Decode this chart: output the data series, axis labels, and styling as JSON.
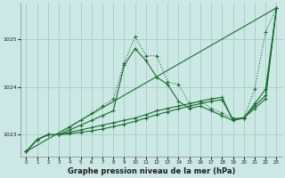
{
  "title": "Graphe pression niveau de la mer (hPa)",
  "bg_color": "#cce8e5",
  "grid_color": "#aacfcc",
  "line_color": "#1a6e2e",
  "xlim": [
    -0.5,
    23.5
  ],
  "ylim": [
    1022.55,
    1025.75
  ],
  "yticks": [
    1023,
    1024,
    1025
  ],
  "figsize": [
    3.2,
    2.0
  ],
  "series": [
    {
      "x": [
        0,
        1,
        2,
        3,
        4,
        5,
        6,
        7,
        8,
        9,
        10,
        11,
        12,
        13,
        14,
        15,
        16,
        17,
        18,
        19,
        20,
        21,
        22,
        23
      ],
      "y": [
        1022.65,
        1022.9,
        1023.0,
        1023.0,
        1023.15,
        1023.3,
        1023.45,
        1023.6,
        1023.75,
        1024.5,
        1025.05,
        1024.65,
        1024.65,
        1024.1,
        1024.05,
        1023.65,
        1023.7,
        1023.55,
        1023.45,
        1023.35,
        1023.35,
        1023.95,
        1025.15,
        1025.65
      ],
      "linestyle": "dotted"
    },
    {
      "x": [
        0,
        1,
        2,
        3,
        4,
        5,
        6,
        7,
        8,
        9,
        10,
        11,
        12,
        13,
        14,
        15,
        16,
        17,
        18,
        19,
        20,
        21,
        22,
        23
      ],
      "y": [
        1022.65,
        1022.9,
        1023.0,
        1023.0,
        1023.1,
        1023.2,
        1023.3,
        1023.4,
        1023.5,
        1024.45,
        1024.8,
        1024.55,
        1024.2,
        1024.05,
        1023.7,
        1023.55,
        1023.6,
        1023.5,
        1023.4,
        1023.3,
        1023.35,
        1023.65,
        1023.95,
        1025.65
      ],
      "linestyle": "solid"
    },
    {
      "x": [
        0,
        23
      ],
      "y": [
        1022.65,
        1025.65
      ],
      "linestyle": "solid"
    },
    {
      "x": [
        0,
        1,
        2,
        3,
        4,
        5,
        6,
        7,
        8,
        9,
        10,
        11,
        12,
        13,
        14,
        15,
        16,
        17,
        18,
        19,
        20,
        21,
        22,
        23
      ],
      "y": [
        1022.65,
        1022.9,
        1023.0,
        1023.0,
        1023.05,
        1023.1,
        1023.15,
        1023.2,
        1023.25,
        1023.3,
        1023.35,
        1023.42,
        1023.5,
        1023.55,
        1023.6,
        1023.65,
        1023.7,
        1023.75,
        1023.78,
        1023.3,
        1023.35,
        1023.55,
        1023.75,
        1025.65
      ],
      "linestyle": "solid"
    },
    {
      "x": [
        0,
        1,
        2,
        3,
        4,
        5,
        6,
        7,
        8,
        9,
        10,
        11,
        12,
        13,
        14,
        15,
        16,
        17,
        18,
        19,
        20,
        21,
        22,
        23
      ],
      "y": [
        1022.65,
        1022.9,
        1023.0,
        1023.0,
        1023.02,
        1023.05,
        1023.08,
        1023.12,
        1023.17,
        1023.22,
        1023.28,
        1023.35,
        1023.42,
        1023.48,
        1023.54,
        1023.6,
        1023.65,
        1023.7,
        1023.73,
        1023.32,
        1023.36,
        1023.6,
        1023.82,
        1025.65
      ],
      "linestyle": "solid"
    }
  ]
}
